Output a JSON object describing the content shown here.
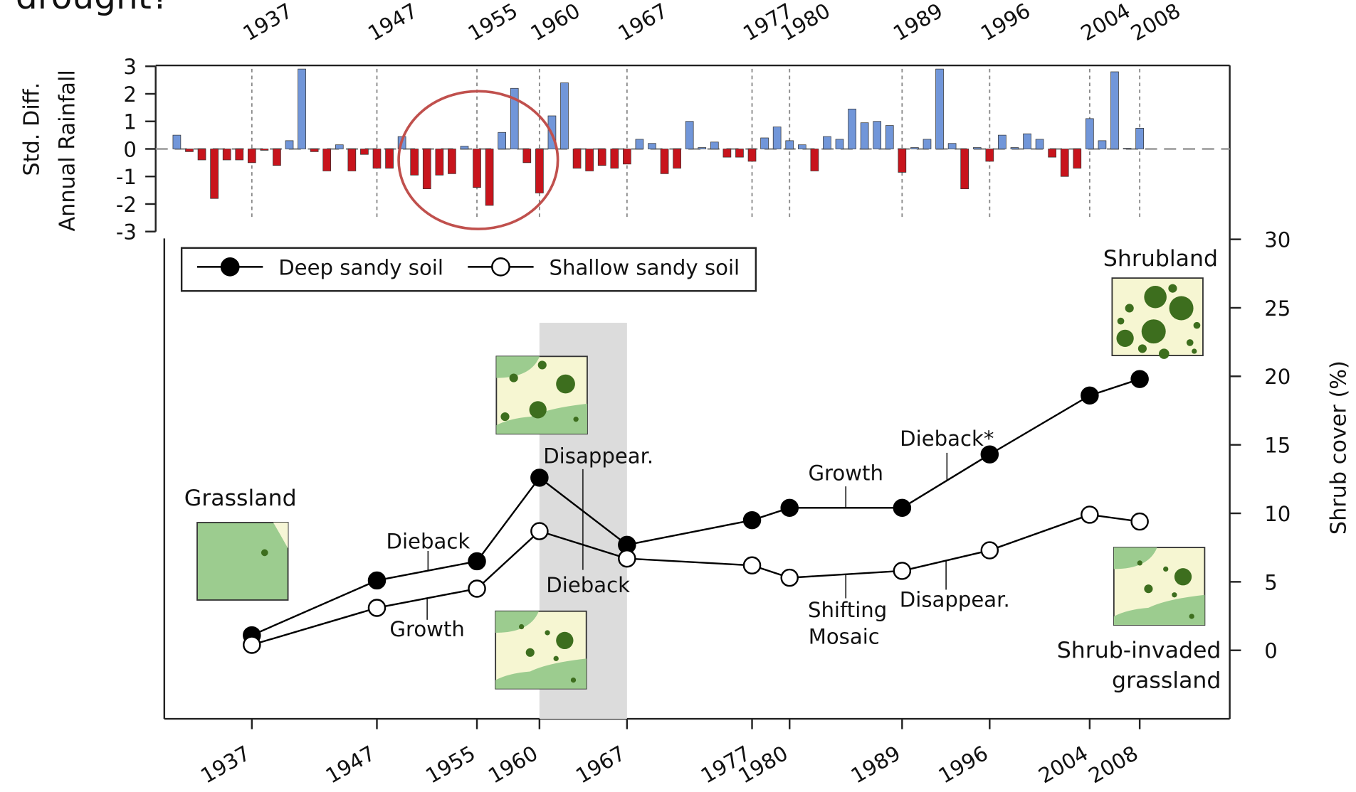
{
  "heading": "drought?",
  "chart_data": [
    {
      "type": "bar",
      "ylabel": [
        "Std. Diff.",
        "Annual Rainfall"
      ],
      "x": [
        1931,
        1932,
        1933,
        1934,
        1935,
        1936,
        1937,
        1938,
        1939,
        1940,
        1941,
        1942,
        1943,
        1944,
        1945,
        1946,
        1947,
        1948,
        1949,
        1950,
        1951,
        1952,
        1953,
        1954,
        1955,
        1956,
        1957,
        1958,
        1959,
        1960,
        1961,
        1962,
        1963,
        1964,
        1965,
        1966,
        1967,
        1968,
        1969,
        1970,
        1971,
        1972,
        1973,
        1974,
        1975,
        1976,
        1977,
        1978,
        1979,
        1980,
        1981,
        1982,
        1983,
        1984,
        1985,
        1986,
        1987,
        1988,
        1989,
        1990,
        1991,
        1992,
        1993,
        1994,
        1995,
        1996,
        1997,
        1998,
        1999,
        2000,
        2001,
        2002,
        2003,
        2004,
        2005,
        2006,
        2007,
        2008
      ],
      "values": [
        0.5,
        -0.1,
        -0.4,
        -1.8,
        -0.4,
        -0.4,
        -0.5,
        -0.05,
        -0.6,
        0.3,
        2.9,
        -0.1,
        -0.8,
        0.15,
        -0.8,
        -0.2,
        -0.7,
        -0.7,
        0.45,
        -0.95,
        -1.45,
        -0.95,
        -0.9,
        0.1,
        -1.4,
        -2.05,
        0.6,
        2.2,
        -0.5,
        -1.6,
        1.2,
        2.4,
        -0.7,
        -0.8,
        -0.6,
        -0.7,
        -0.55,
        0.35,
        0.2,
        -0.9,
        -0.7,
        1.0,
        0.05,
        0.25,
        -0.3,
        -0.3,
        -0.45,
        0.4,
        0.8,
        0.3,
        0.15,
        -0.8,
        0.45,
        0.35,
        1.45,
        0.95,
        1.0,
        0.85,
        -0.85,
        0.05,
        0.35,
        2.9,
        0.2,
        -1.45,
        0.05,
        -0.45,
        0.5,
        0.05,
        0.55,
        0.35,
        -0.3,
        -1.0,
        -0.7,
        1.1,
        0.3,
        2.8,
        0.02,
        0.75
      ],
      "colors": {
        "positive": "#7196d9",
        "negative": "#c8141c"
      },
      "xlim": [
        1930,
        2015.2
      ],
      "xticks": [
        1937,
        1947,
        1955,
        1960,
        1967,
        1977,
        1980,
        1989,
        1996,
        2004,
        2008
      ],
      "ylim": [
        -3,
        3
      ],
      "yticks": [
        -3,
        -2,
        -1,
        0,
        1,
        2,
        3
      ]
    },
    {
      "type": "line",
      "ylabel": "Shrub cover (%)",
      "x": [
        1937,
        1947,
        1955,
        1960,
        1967,
        1977,
        1980,
        1989,
        1996,
        2004,
        2008
      ],
      "series": [
        {
          "name": "Deep sandy soil",
          "marker": "filled",
          "color": "#000000",
          "values": [
            1.1,
            5.1,
            6.5,
            12.6,
            7.7,
            9.5,
            10.4,
            10.4,
            14.3,
            18.6,
            19.8
          ]
        },
        {
          "name": "Shallow sandy soil",
          "marker": "open",
          "color": "#000000",
          "values": [
            0.4,
            3.1,
            4.5,
            8.7,
            6.7,
            6.2,
            5.3,
            5.8,
            7.3,
            9.9,
            9.4
          ]
        }
      ],
      "shaded_span": [
        1960,
        1967
      ],
      "xlim": [
        1930,
        2015.2
      ],
      "xticks": [
        1937,
        1947,
        1955,
        1960,
        1967,
        1977,
        1980,
        1989,
        1996,
        2004,
        2008
      ],
      "ylim": [
        -5,
        30
      ],
      "yticks": [
        0,
        5,
        10,
        15,
        20,
        25,
        30
      ],
      "annotations": [
        "Grassland",
        "Dieback",
        "Growth",
        "Disappear.",
        "Dieback",
        "Growth",
        "Dieback*",
        "Shifting",
        "Mosaic",
        "Disappear.",
        "Shrubland",
        "Shrub-invaded",
        "grassland"
      ]
    }
  ]
}
